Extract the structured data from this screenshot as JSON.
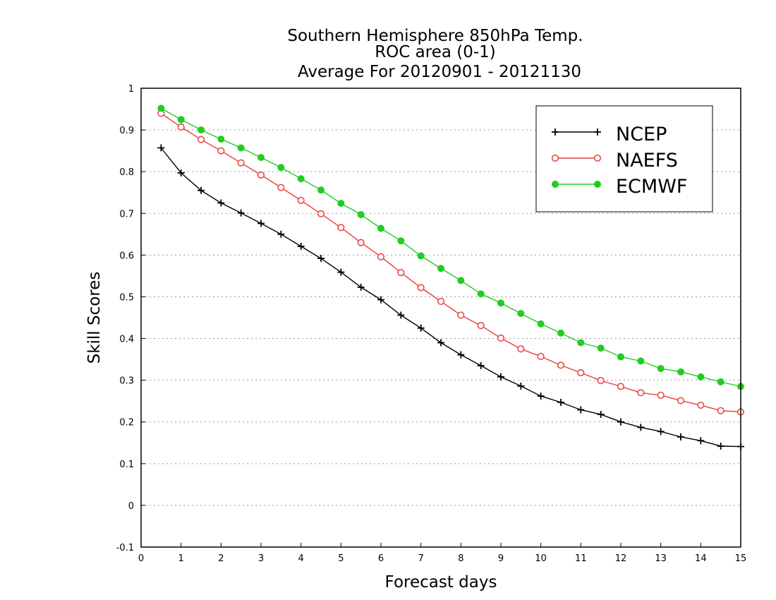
{
  "chart_data": {
    "type": "line",
    "title_lines": [
      "Southern Hemisphere 850hPa Temp.",
      "ROC area (0-1)",
      "Average For 20120901 - 20121130"
    ],
    "xlabel": "Forecast days",
    "ylabel": "Skill Scores",
    "xlim": [
      0,
      15
    ],
    "ylim": [
      -0.1,
      1
    ],
    "xticks": [
      "0",
      "1",
      "2",
      "3",
      "4",
      "5",
      "6",
      "7",
      "8",
      "9",
      "10",
      "11",
      "12",
      "13",
      "14",
      "15"
    ],
    "yticks": [
      "-0.1",
      "0",
      "0.1",
      "0.2",
      "0.3",
      "0.4",
      "0.5",
      "0.6",
      "0.7",
      "0.8",
      "0.9",
      "1"
    ],
    "grid": "horizontal dotted",
    "legend_position": "top-right",
    "x": [
      0.5,
      1,
      1.5,
      2,
      2.5,
      3,
      3.5,
      4,
      4.5,
      5,
      5.5,
      6,
      6.5,
      7,
      7.5,
      8,
      8.5,
      9,
      9.5,
      10,
      10.5,
      11,
      11.5,
      12,
      12.5,
      13,
      13.5,
      14,
      14.5,
      15
    ],
    "series": [
      {
        "name": "NCEP",
        "color": "#000000",
        "marker": "plus",
        "values": [
          0.857,
          0.797,
          0.755,
          0.725,
          0.701,
          0.676,
          0.65,
          0.621,
          0.592,
          0.559,
          0.523,
          0.493,
          0.456,
          0.425,
          0.39,
          0.361,
          0.335,
          0.308,
          0.286,
          0.262,
          0.247,
          0.229,
          0.218,
          0.2,
          0.187,
          0.177,
          0.164,
          0.155,
          0.142,
          0.141
        ]
      },
      {
        "name": "NAEFS",
        "color": "#e8403a",
        "marker": "open-circle",
        "values": [
          0.94,
          0.907,
          0.877,
          0.85,
          0.821,
          0.792,
          0.762,
          0.731,
          0.699,
          0.666,
          0.63,
          0.596,
          0.558,
          0.522,
          0.489,
          0.456,
          0.431,
          0.401,
          0.375,
          0.357,
          0.336,
          0.318,
          0.299,
          0.285,
          0.27,
          0.264,
          0.251,
          0.24,
          0.227,
          0.224
        ]
      },
      {
        "name": "ECMWF",
        "color": "#22cc22",
        "marker": "filled-circle",
        "values": [
          0.952,
          0.925,
          0.9,
          0.878,
          0.857,
          0.834,
          0.81,
          0.783,
          0.756,
          0.724,
          0.697,
          0.664,
          0.634,
          0.598,
          0.568,
          0.539,
          0.507,
          0.485,
          0.46,
          0.435,
          0.413,
          0.39,
          0.377,
          0.356,
          0.346,
          0.328,
          0.32,
          0.308,
          0.296,
          0.285
        ]
      }
    ]
  }
}
